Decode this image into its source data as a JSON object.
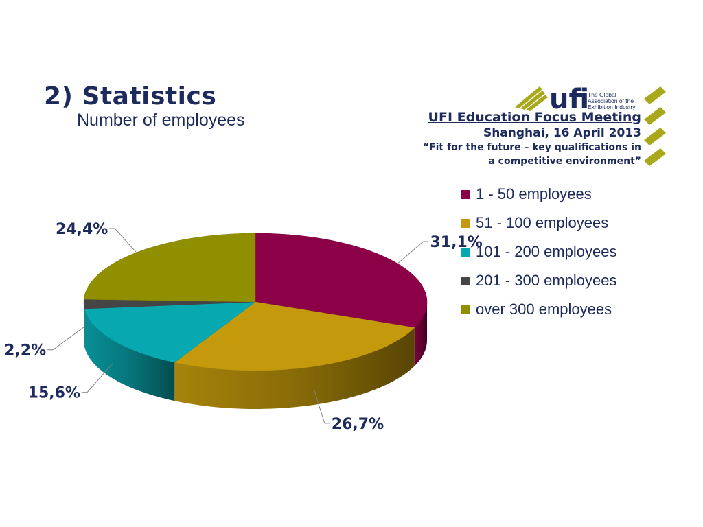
{
  "slide": {
    "title": "2) Statistics",
    "subtitle": "Number of employees"
  },
  "logo": {
    "name": "ufi",
    "tagline": [
      "The Global",
      "Association of the",
      "Exhibition Industry"
    ],
    "accent_color": "#a8a81a"
  },
  "meeting": {
    "line1": "UFI Education Focus Meeting",
    "line2": "Shanghai, 16 April 2013",
    "line3": "“Fit for the future – key qualifications in",
    "line4": "a competitive environment”"
  },
  "chart_data": {
    "type": "pie",
    "title": "",
    "categories": [
      "1 - 50 employees",
      "51 - 100 employees",
      "101 - 200 employees",
      "201 - 300 employees",
      "over 300 employees"
    ],
    "values": [
      31.1,
      26.7,
      15.6,
      2.2,
      24.4
    ],
    "labels": [
      "31,1%",
      "26,7%",
      "15,6%",
      "2,2%",
      "24,4%"
    ],
    "colors": [
      "#8b0046",
      "#c49a0c",
      "#08a8b0",
      "#454545",
      "#8f8f00"
    ],
    "legend_position": "right",
    "style": "3d"
  }
}
